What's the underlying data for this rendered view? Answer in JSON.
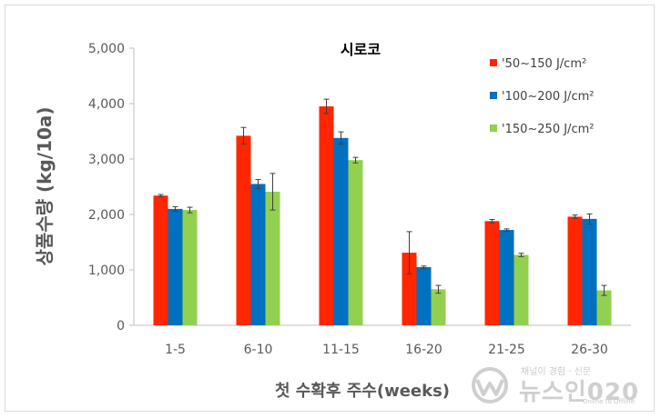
{
  "chart_data": {
    "type": "bar",
    "title": "시로코",
    "xlabel": "첫 수확후 주수(weeks)",
    "ylabel": "상품수량 (kg/10a)",
    "categories": [
      "1-5",
      "6-10",
      "11-15",
      "16-20",
      "21-25",
      "26-30"
    ],
    "ylim": [
      0,
      5000
    ],
    "yticks": [
      "0",
      "1,000",
      "2,000",
      "3,000",
      "4,000",
      "5,000"
    ],
    "ytick_values": [
      0,
      1000,
      2000,
      3000,
      4000,
      5000
    ],
    "grid": false,
    "legend_position": "top-right",
    "series": [
      {
        "name": "'50~150 J/cm²",
        "color": "#ff2600",
        "values": [
          2340,
          3420,
          3950,
          1310,
          1880,
          1960
        ],
        "errors": [
          20,
          150,
          130,
          380,
          30,
          30
        ]
      },
      {
        "name": "'100~200 J/cm²",
        "color": "#0070c0",
        "values": [
          2100,
          2550,
          3380,
          1050,
          1720,
          1920
        ],
        "errors": [
          40,
          80,
          110,
          20,
          20,
          90
        ]
      },
      {
        "name": "'150~250 J/cm²",
        "color": "#92d050",
        "values": [
          2080,
          2410,
          2980,
          650,
          1270,
          630
        ],
        "errors": [
          50,
          330,
          50,
          70,
          30,
          90
        ]
      }
    ]
  },
  "watermark": {
    "tagline": "채널이 경험 · 신문",
    "brand": "뉴스인020",
    "sub": "Online to Offline",
    "color": "#a8a8a8"
  }
}
